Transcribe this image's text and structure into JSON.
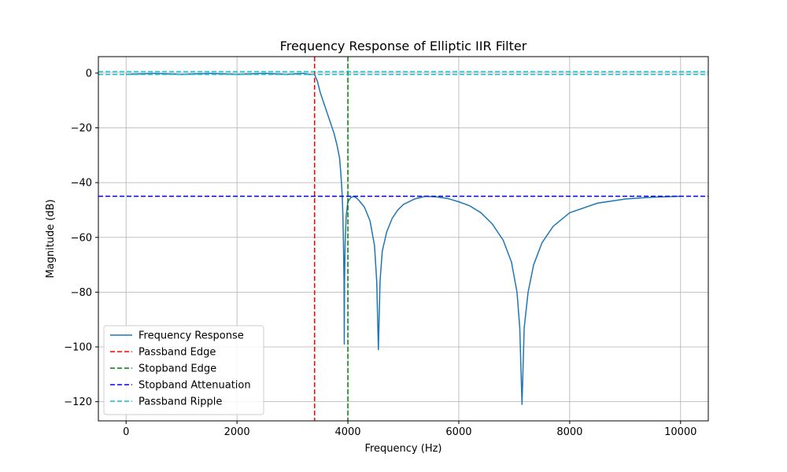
{
  "chart_data": {
    "type": "line",
    "title": "Frequency Response of Elliptic IIR Filter",
    "xlabel": "Frequency (Hz)",
    "ylabel": "Magnitude (dB)",
    "xlim": [
      -500,
      10500
    ],
    "ylim": [
      -127,
      6
    ],
    "xticks": [
      0,
      2000,
      4000,
      6000,
      8000,
      10000
    ],
    "xtick_labels": [
      "0",
      "2000",
      "4000",
      "6000",
      "8000",
      "10000"
    ],
    "yticks": [
      0,
      -20,
      -40,
      -60,
      -80,
      -100,
      -120
    ],
    "ytick_labels": [
      "0",
      "−20",
      "−40",
      "−60",
      "−80",
      "−100",
      "−120"
    ],
    "grid": true,
    "legend_position": "lower-left",
    "series": [
      {
        "name": "Frequency Response",
        "color": "#1f77b4",
        "style": "solid",
        "points": [
          [
            0,
            -0.5
          ],
          [
            500,
            -0.1
          ],
          [
            1000,
            -0.5
          ],
          [
            1500,
            -0.1
          ],
          [
            2000,
            -0.5
          ],
          [
            2500,
            -0.1
          ],
          [
            2900,
            -0.5
          ],
          [
            3200,
            -0.1
          ],
          [
            3300,
            -0.5
          ],
          [
            3400,
            -0.5
          ],
          [
            3450,
            -3
          ],
          [
            3500,
            -7
          ],
          [
            3550,
            -10
          ],
          [
            3600,
            -13
          ],
          [
            3650,
            -16
          ],
          [
            3700,
            -19
          ],
          [
            3750,
            -22
          ],
          [
            3800,
            -26
          ],
          [
            3850,
            -31
          ],
          [
            3870,
            -36
          ],
          [
            3890,
            -42
          ],
          [
            3900,
            -46
          ],
          [
            3910,
            -52
          ],
          [
            3920,
            -62
          ],
          [
            3930,
            -76
          ],
          [
            3935,
            -99
          ],
          [
            3940,
            -76
          ],
          [
            3950,
            -62
          ],
          [
            3970,
            -52
          ],
          [
            4000,
            -47
          ],
          [
            4050,
            -45.5
          ],
          [
            4100,
            -45
          ],
          [
            4150,
            -45.5
          ],
          [
            4200,
            -46.5
          ],
          [
            4300,
            -49
          ],
          [
            4400,
            -54
          ],
          [
            4480,
            -63
          ],
          [
            4520,
            -76
          ],
          [
            4550,
            -101
          ],
          [
            4580,
            -76
          ],
          [
            4620,
            -65
          ],
          [
            4700,
            -58
          ],
          [
            4800,
            -53
          ],
          [
            4900,
            -50
          ],
          [
            5000,
            -48
          ],
          [
            5200,
            -46
          ],
          [
            5400,
            -45
          ],
          [
            5600,
            -45.2
          ],
          [
            5800,
            -45.8
          ],
          [
            6000,
            -47
          ],
          [
            6200,
            -48.5
          ],
          [
            6400,
            -51
          ],
          [
            6600,
            -55
          ],
          [
            6800,
            -61
          ],
          [
            6950,
            -69
          ],
          [
            7050,
            -80
          ],
          [
            7100,
            -93
          ],
          [
            7140,
            -121
          ],
          [
            7180,
            -93
          ],
          [
            7250,
            -80
          ],
          [
            7350,
            -70
          ],
          [
            7500,
            -62
          ],
          [
            7700,
            -56
          ],
          [
            8000,
            -51
          ],
          [
            8500,
            -47.5
          ],
          [
            9000,
            -46
          ],
          [
            9500,
            -45.3
          ],
          [
            10000,
            -45
          ]
        ]
      },
      {
        "name": "Passband Edge",
        "color": "#ff0000",
        "style": "dashed",
        "orientation": "vertical",
        "value": 3400
      },
      {
        "name": "Stopband Edge",
        "color": "#008000",
        "style": "dashed",
        "orientation": "vertical",
        "value": 4000
      },
      {
        "name": "Stopband Attenuation",
        "color": "#0000ff",
        "style": "dashed",
        "orientation": "horizontal",
        "value": -45
      },
      {
        "name": "Passband Ripple",
        "color": "#17becf",
        "style": "dashed",
        "orientation": "horizontal",
        "value": [
          0.5,
          -0.5
        ]
      }
    ]
  }
}
